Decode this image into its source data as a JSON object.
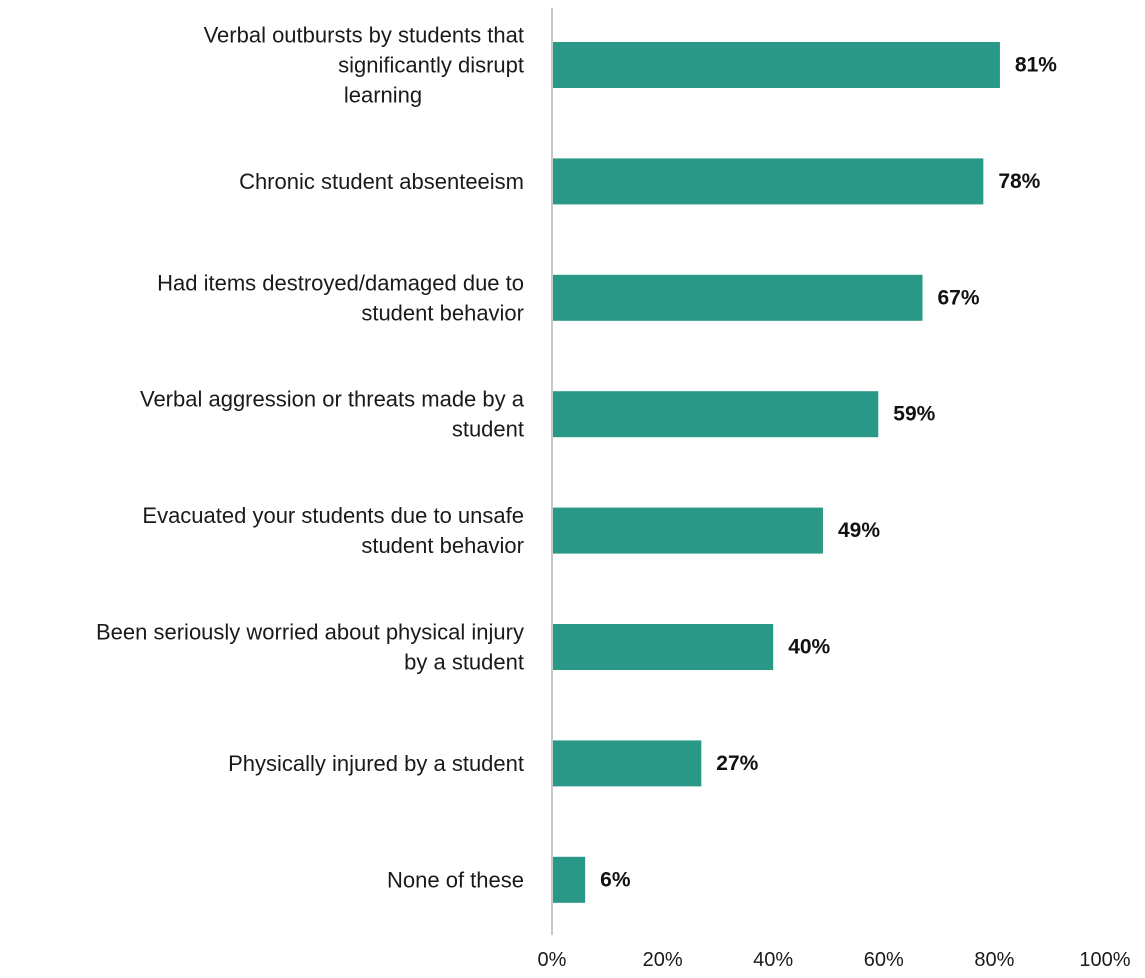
{
  "chart_data": {
    "type": "bar",
    "orientation": "horizontal",
    "categories": [
      [
        "Verbal outbursts by students that",
        "significantly disrupt",
        "learning"
      ],
      [
        "Chronic student absenteeism"
      ],
      [
        "Had items destroyed/damaged due to",
        "student behavior"
      ],
      [
        "Verbal aggression or threats made by a",
        "student"
      ],
      [
        "Evacuated your students due to unsafe",
        "student behavior"
      ],
      [
        "Been seriously worried about physical injury",
        "by a student"
      ],
      [
        "Physically injured by a student"
      ],
      [
        "None of these"
      ]
    ],
    "values": [
      81,
      78,
      67,
      59,
      49,
      40,
      27,
      6
    ],
    "value_labels": [
      "81%",
      "78%",
      "67%",
      "59%",
      "49%",
      "40%",
      "27%",
      "6%"
    ],
    "x_ticks": [
      "0%",
      "20%",
      "40%",
      "60%",
      "80%",
      "100%"
    ],
    "xlim": [
      0,
      100
    ],
    "bar_color": "#2a9886",
    "axis_color": "#c8c8c8",
    "grid": false,
    "legend": "none"
  }
}
